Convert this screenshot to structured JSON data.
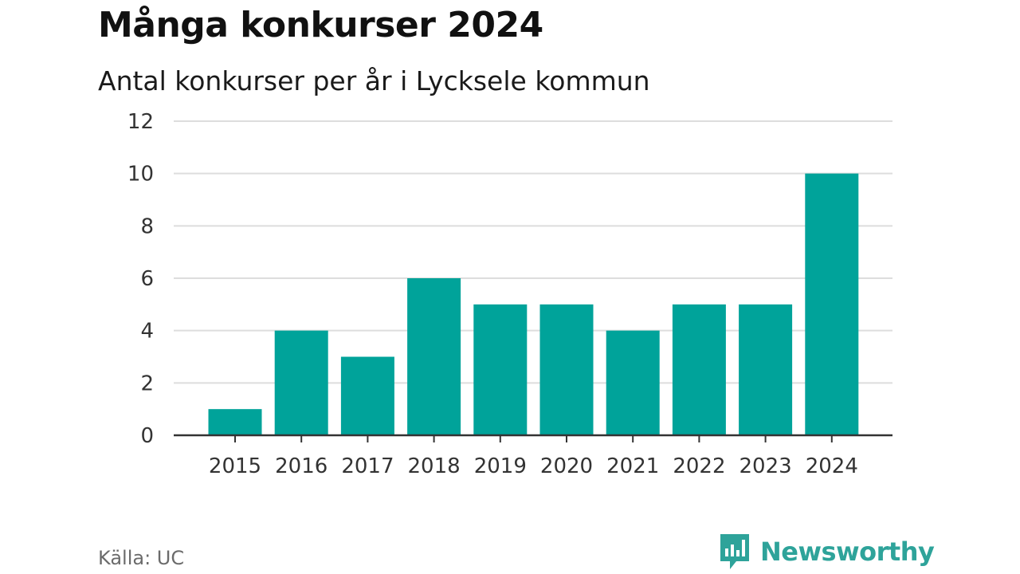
{
  "title": "Många konkurser 2024",
  "subtitle": "Antal konkurser per år i Lycksele kommun",
  "source": "Källa: UC",
  "brand": {
    "name": "Newsworthy",
    "icon": "newsworthy-logo-icon",
    "color": "#2ea39a"
  },
  "chart_data": {
    "type": "bar",
    "title": "Många konkurser 2024",
    "subtitle": "Antal konkurser per år i Lycksele kommun",
    "categories": [
      "2015",
      "2016",
      "2017",
      "2018",
      "2019",
      "2020",
      "2021",
      "2022",
      "2023",
      "2024"
    ],
    "values": [
      1,
      4,
      3,
      6,
      5,
      5,
      4,
      5,
      5,
      10
    ],
    "ylim": [
      0,
      12
    ],
    "yticks": [
      0,
      2,
      4,
      6,
      8,
      10,
      12
    ],
    "grid": true,
    "bar_color": "#00a39a",
    "grid_color": "#dddddd",
    "axis_color": "#333333"
  }
}
